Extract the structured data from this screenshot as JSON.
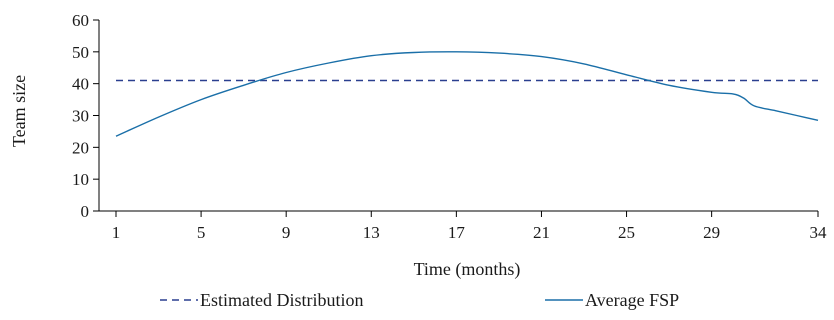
{
  "chart_data": {
    "type": "line",
    "title": "",
    "xlabel": "Time (months)",
    "ylabel": "Team size",
    "xlim": [
      1,
      34
    ],
    "ylim": [
      0,
      60
    ],
    "xticks": [
      1,
      5,
      9,
      13,
      17,
      21,
      25,
      29,
      34
    ],
    "yticks": [
      0,
      10,
      20,
      30,
      40,
      50,
      60
    ],
    "grid": false,
    "legend_position": "bottom",
    "series": [
      {
        "name": "Estimated Distribution",
        "style": "dashed",
        "color": "#2a3f8f",
        "x": [
          1,
          34
        ],
        "y": [
          41,
          41
        ]
      },
      {
        "name": "Average FSP",
        "style": "solid",
        "color": "#1a6fa8",
        "x": [
          1,
          3,
          5,
          7,
          9,
          11,
          13,
          15,
          17,
          19,
          21,
          23,
          25,
          27,
          29,
          30,
          30.5,
          31,
          32,
          33,
          34
        ],
        "y": [
          23.5,
          29.5,
          35,
          39.5,
          43.5,
          46.5,
          48.8,
          49.8,
          50,
          49.6,
          48.5,
          46.2,
          42.8,
          39.5,
          37.3,
          36.8,
          35.5,
          33,
          31.5,
          30,
          28.5
        ]
      }
    ]
  }
}
